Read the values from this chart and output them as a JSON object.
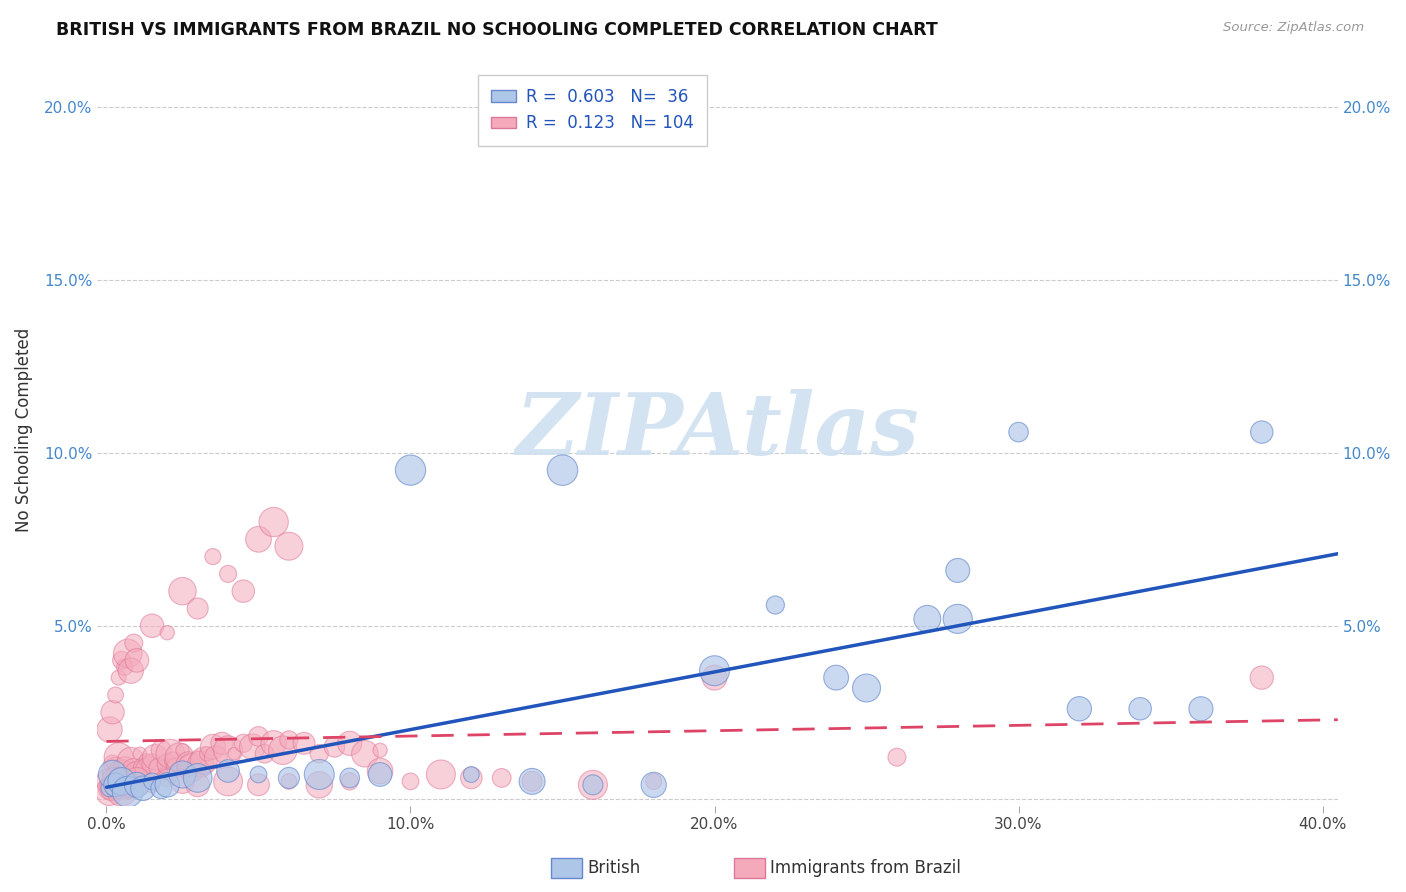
{
  "title": "BRITISH VS IMMIGRANTS FROM BRAZIL NO SCHOOLING COMPLETED CORRELATION CHART",
  "source": "Source: ZipAtlas.com",
  "ylabel": "No Schooling Completed",
  "xlim": [
    -0.003,
    0.405
  ],
  "ylim": [
    -0.002,
    0.215
  ],
  "xticks": [
    0.0,
    0.1,
    0.2,
    0.3,
    0.4
  ],
  "xticklabels": [
    "0.0%",
    "10.0%",
    "20.0%",
    "30.0%",
    "40.0%"
  ],
  "yticks": [
    0.0,
    0.05,
    0.1,
    0.15,
    0.2
  ],
  "yticklabels": [
    "",
    "5.0%",
    "10.0%",
    "15.0%",
    "20.0%"
  ],
  "british_R": "0.603",
  "british_N": "36",
  "brazil_R": "0.123",
  "brazil_N": "104",
  "british_color": "#aec6e8",
  "brazil_color": "#f4aabb",
  "british_edge_color": "#6688cc",
  "brazil_edge_color": "#dd7799",
  "british_line_color": "#2255bb",
  "brazil_line_color": "#dd4466",
  "legend_text_color": "#2255bb",
  "title_color": "#111111",
  "source_color": "#999999",
  "axis_tick_color": "#4488cc",
  "watermark": "ZIPAtlas",
  "watermark_color": "#ccdff0",
  "grid_color": "#cccccc",
  "background": "#ffffff",
  "british_x": [
    0.001,
    0.002,
    0.003,
    0.005,
    0.007,
    0.01,
    0.012,
    0.015,
    0.018,
    0.02,
    0.025,
    0.03,
    0.04,
    0.05,
    0.06,
    0.07,
    0.08,
    0.09,
    0.1,
    0.12,
    0.14,
    0.15,
    0.16,
    0.18,
    0.2,
    0.22,
    0.24,
    0.25,
    0.27,
    0.28,
    0.3,
    0.32,
    0.34,
    0.36,
    0.38,
    0.28
  ],
  "british_y": [
    0.003,
    0.007,
    0.004,
    0.005,
    0.002,
    0.004,
    0.003,
    0.005,
    0.003,
    0.004,
    0.007,
    0.006,
    0.008,
    0.007,
    0.006,
    0.007,
    0.006,
    0.007,
    0.095,
    0.007,
    0.005,
    0.095,
    0.004,
    0.004,
    0.037,
    0.056,
    0.035,
    0.032,
    0.052,
    0.066,
    0.106,
    0.026,
    0.026,
    0.026,
    0.106,
    0.052
  ],
  "brazil_x": [
    0.001,
    0.002,
    0.003,
    0.004,
    0.005,
    0.006,
    0.007,
    0.008,
    0.009,
    0.01,
    0.011,
    0.012,
    0.013,
    0.014,
    0.015,
    0.016,
    0.017,
    0.018,
    0.019,
    0.02,
    0.021,
    0.022,
    0.023,
    0.024,
    0.025,
    0.026,
    0.027,
    0.028,
    0.03,
    0.031,
    0.032,
    0.033,
    0.035,
    0.036,
    0.038,
    0.04,
    0.042,
    0.045,
    0.048,
    0.05,
    0.052,
    0.055,
    0.058,
    0.06,
    0.065,
    0.07,
    0.075,
    0.08,
    0.085,
    0.09,
    0.001,
    0.002,
    0.003,
    0.004,
    0.005,
    0.006,
    0.007,
    0.008,
    0.009,
    0.01,
    0.015,
    0.02,
    0.025,
    0.03,
    0.035,
    0.04,
    0.045,
    0.05,
    0.055,
    0.06,
    0.001,
    0.002,
    0.003,
    0.004,
    0.005,
    0.01,
    0.015,
    0.02,
    0.025,
    0.03,
    0.04,
    0.05,
    0.06,
    0.07,
    0.08,
    0.1,
    0.12,
    0.14,
    0.16,
    0.18,
    0.001,
    0.002,
    0.003,
    0.004,
    0.005,
    0.006,
    0.007,
    0.008,
    0.2,
    0.38,
    0.09,
    0.11,
    0.13,
    0.26
  ],
  "brazil_y": [
    0.005,
    0.01,
    0.008,
    0.012,
    0.007,
    0.009,
    0.006,
    0.011,
    0.008,
    0.007,
    0.013,
    0.009,
    0.011,
    0.008,
    0.01,
    0.012,
    0.009,
    0.014,
    0.007,
    0.01,
    0.013,
    0.011,
    0.009,
    0.012,
    0.014,
    0.008,
    0.01,
    0.009,
    0.012,
    0.01,
    0.011,
    0.013,
    0.015,
    0.012,
    0.016,
    0.014,
    0.013,
    0.016,
    0.015,
    0.018,
    0.013,
    0.016,
    0.014,
    0.017,
    0.016,
    0.013,
    0.015,
    0.016,
    0.013,
    0.014,
    0.02,
    0.025,
    0.03,
    0.035,
    0.04,
    0.038,
    0.042,
    0.037,
    0.045,
    0.04,
    0.05,
    0.048,
    0.06,
    0.055,
    0.07,
    0.065,
    0.06,
    0.075,
    0.08,
    0.073,
    0.003,
    0.004,
    0.005,
    0.006,
    0.004,
    0.005,
    0.004,
    0.006,
    0.005,
    0.004,
    0.005,
    0.004,
    0.005,
    0.004,
    0.005,
    0.005,
    0.006,
    0.005,
    0.004,
    0.005,
    0.002,
    0.003,
    0.002,
    0.003,
    0.002,
    0.003,
    0.002,
    0.003,
    0.035,
    0.035,
    0.008,
    0.007,
    0.006,
    0.012
  ]
}
